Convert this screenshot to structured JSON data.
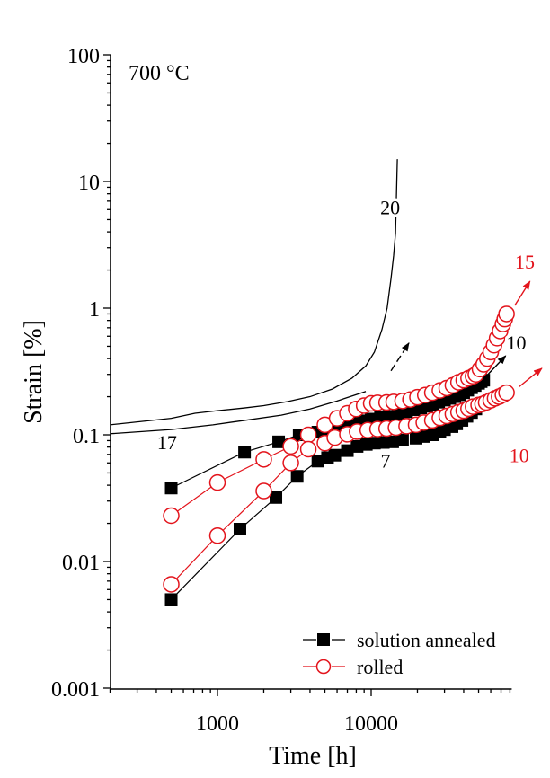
{
  "chart_data": {
    "type": "scatter",
    "title": "",
    "xlabel": "Time [h]",
    "ylabel": "Strain [%]",
    "xscale": "log",
    "yscale": "log",
    "xlim": [
      200,
      80000
    ],
    "ylim": [
      0.001,
      100
    ],
    "x_ticks": [
      {
        "value": 1000,
        "label": "1000"
      },
      {
        "value": 10000,
        "label": "10000"
      }
    ],
    "y_ticks": [
      {
        "value": 100,
        "label": "100"
      },
      {
        "value": 10,
        "label": "10"
      },
      {
        "value": 1,
        "label": "1"
      },
      {
        "value": 0.1,
        "label": "0.1"
      },
      {
        "value": 0.01,
        "label": "0.01"
      },
      {
        "value": 0.001,
        "label": "0.001"
      }
    ],
    "grid": false,
    "legend_position": "bottom-right",
    "inset_text": "700 °C",
    "colors": {
      "solution_annealed": "#000000",
      "rolled": "#e3141c",
      "lines": "#000000"
    },
    "series": [
      {
        "name": "solution annealed",
        "marker": "filled-square",
        "color": "#000000",
        "show_in_legend": true,
        "x": [
          500,
          1500,
          2500,
          3400,
          4500,
          5200,
          6000,
          7000,
          8000,
          9000,
          10000,
          11500,
          13000,
          15000,
          17000,
          19000,
          21000,
          23000,
          25000,
          27500,
          30000,
          32500,
          35000,
          37500,
          40000,
          42500,
          45000,
          47500,
          50000,
          52000,
          54000
        ],
        "y": [
          0.038,
          0.073,
          0.088,
          0.1,
          0.105,
          0.11,
          0.115,
          0.12,
          0.125,
          0.129,
          0.133,
          0.137,
          0.14,
          0.146,
          0.152,
          0.158,
          0.163,
          0.168,
          0.174,
          0.181,
          0.188,
          0.194,
          0.2,
          0.207,
          0.215,
          0.225,
          0.235,
          0.245,
          0.255,
          0.263,
          0.27
        ]
      },
      {
        "name": "solution annealed",
        "marker": "filled-square",
        "color": "#000000",
        "show_in_legend": false,
        "x": [
          500,
          1400,
          2400,
          3300,
          4500,
          5200,
          5800,
          7000,
          8100,
          9300,
          10500,
          12000,
          13800,
          16000,
          19600,
          22000,
          25000,
          28000,
          30000,
          33600,
          36000,
          39000,
          42000,
          45000,
          48000
        ],
        "y": [
          0.005,
          0.018,
          0.032,
          0.047,
          0.062,
          0.066,
          0.069,
          0.075,
          0.081,
          0.084,
          0.086,
          0.087,
          0.088,
          0.091,
          0.094,
          0.097,
          0.1,
          0.106,
          0.11,
          0.116,
          0.122,
          0.13,
          0.14,
          0.15,
          0.16
        ]
      },
      {
        "name": "rolled",
        "marker": "open-circle",
        "color": "#e3141c",
        "show_in_legend": true,
        "x": [
          500,
          1000,
          2000,
          3000,
          3900,
          5000,
          6000,
          7000,
          8000,
          9000,
          10000,
          11000,
          12600,
          14000,
          16000,
          18000,
          20000,
          22500,
          25000,
          28000,
          31000,
          34000,
          37000,
          40000,
          43000,
          46000,
          48000,
          51000,
          54000,
          57000,
          60000,
          63000,
          66000,
          69000,
          72000,
          74000,
          76000
        ],
        "y": [
          0.023,
          0.042,
          0.064,
          0.081,
          0.1,
          0.12,
          0.135,
          0.148,
          0.16,
          0.17,
          0.177,
          0.179,
          0.18,
          0.182,
          0.185,
          0.19,
          0.198,
          0.206,
          0.215,
          0.224,
          0.234,
          0.246,
          0.26,
          0.27,
          0.28,
          0.29,
          0.3,
          0.33,
          0.36,
          0.4,
          0.45,
          0.51,
          0.58,
          0.66,
          0.75,
          0.82,
          0.9
        ]
      },
      {
        "name": "rolled",
        "marker": "open-circle",
        "color": "#e3141c",
        "show_in_legend": false,
        "x": [
          500,
          1000,
          2000,
          3000,
          3900,
          5000,
          5800,
          7000,
          8100,
          9500,
          11000,
          12600,
          14500,
          17000,
          19600,
          22000,
          25000,
          28000,
          31000,
          34000,
          37000,
          40000,
          43000,
          46000,
          50000,
          53000,
          56000,
          60000,
          64000,
          68000,
          72000,
          76000
        ],
        "y": [
          0.0066,
          0.016,
          0.036,
          0.06,
          0.077,
          0.086,
          0.095,
          0.101,
          0.106,
          0.109,
          0.111,
          0.112,
          0.114,
          0.117,
          0.12,
          0.125,
          0.13,
          0.136,
          0.141,
          0.146,
          0.151,
          0.155,
          0.161,
          0.167,
          0.172,
          0.175,
          0.18,
          0.187,
          0.194,
          0.2,
          0.207,
          0.215
        ]
      },
      {
        "name": "",
        "marker": "none",
        "line": "solid",
        "color": "#000000",
        "label": "20",
        "x": [
          200,
          500,
          714,
          1000,
          1500,
          2000,
          2860,
          4000,
          5600,
          7500,
          9230,
          10500,
          11760,
          12700,
          13460,
          14000,
          14400,
          14800
        ],
        "y": [
          0.12,
          0.135,
          0.148,
          0.155,
          0.163,
          0.17,
          0.183,
          0.2,
          0.23,
          0.28,
          0.35,
          0.45,
          0.68,
          1.0,
          1.71,
          2.6,
          3.9,
          15
        ]
      },
      {
        "name": "",
        "marker": "none",
        "line": "solid",
        "color": "#000000",
        "label": "17",
        "x": [
          200,
          500,
          935,
          1500,
          2600,
          4000,
          6000,
          9230
        ],
        "y": [
          0.102,
          0.11,
          0.12,
          0.13,
          0.143,
          0.16,
          0.185,
          0.22
        ]
      }
    ],
    "annotations": [
      {
        "text": "20",
        "x": 13300,
        "y": 5.5,
        "color": "#000000"
      },
      {
        "text": "17",
        "x": 470,
        "y": 0.077,
        "color": "#000000"
      },
      {
        "text": "7",
        "x": 12400,
        "y": 0.055,
        "color": "#000000"
      },
      {
        "text": "10",
        "x": 88000,
        "y": 0.47,
        "color": "#000000"
      },
      {
        "text": "15",
        "x": 100000,
        "y": 2.05,
        "color": "#e3141c"
      },
      {
        "text": "10",
        "x": 92000,
        "y": 0.061,
        "color": "#e3141c"
      }
    ],
    "arrows": [
      {
        "from": [
          13460,
          0.32
        ],
        "to": [
          17600,
          0.53
        ],
        "color": "#000000",
        "dashed": true
      },
      {
        "from": [
          57500,
          0.3
        ],
        "to": [
          75000,
          0.42
        ],
        "color": "#000000",
        "dashed": false
      },
      {
        "from": [
          86000,
          1.05
        ],
        "to": [
          108000,
          1.63
        ],
        "color": "#e3141c",
        "dashed": false
      },
      {
        "from": [
          92000,
          0.24
        ],
        "to": [
          129000,
          0.335
        ],
        "color": "#e3141c",
        "dashed": false
      }
    ],
    "legend": [
      {
        "label": "solution annealed",
        "marker": "filled-square",
        "color": "#000000"
      },
      {
        "label": "rolled",
        "marker": "open-circle",
        "color": "#e3141c"
      }
    ]
  }
}
